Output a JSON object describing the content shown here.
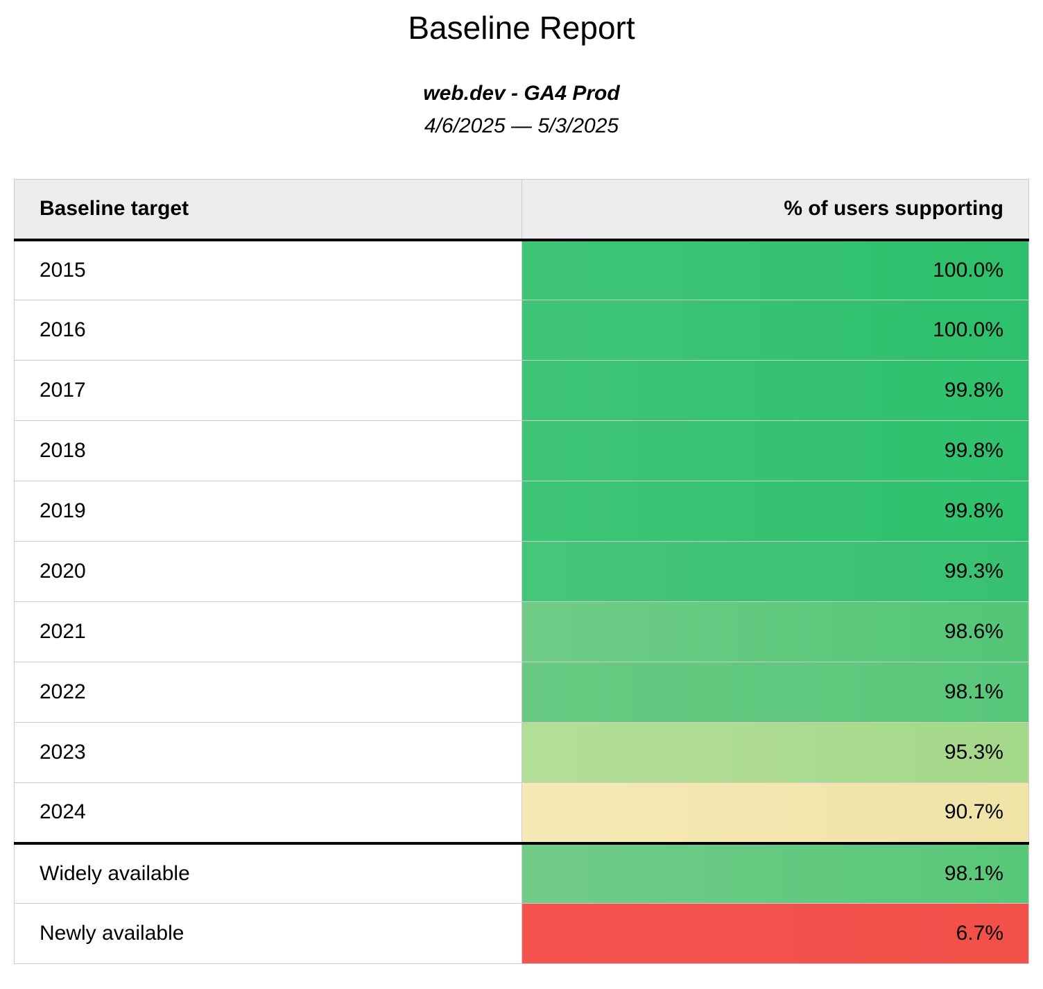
{
  "header": {
    "title": "Baseline Report",
    "subtitle": "web.dev - GA4 Prod",
    "date_range": "4/6/2025 — 5/3/2025"
  },
  "colors": {
    "header_background": "#ececec",
    "cell_border": "#cccccc",
    "divider_border": "#000000",
    "text": "#000000"
  },
  "table": {
    "columns": [
      "Baseline target",
      "% of users supporting"
    ],
    "rows": [
      {
        "label": "2015",
        "value": "100.0%",
        "color_left": "#3fc577",
        "color_right": "#2dc06b",
        "divider_above": false
      },
      {
        "label": "2016",
        "value": "100.0%",
        "color_left": "#3fc577",
        "color_right": "#2dc06b",
        "divider_above": false
      },
      {
        "label": "2017",
        "value": "99.8%",
        "color_left": "#3ec476",
        "color_right": "#2ec16c",
        "divider_above": false
      },
      {
        "label": "2018",
        "value": "99.8%",
        "color_left": "#3ec476",
        "color_right": "#2ec16c",
        "divider_above": false
      },
      {
        "label": "2019",
        "value": "99.8%",
        "color_left": "#3ec476",
        "color_right": "#2ec16c",
        "divider_above": false
      },
      {
        "label": "2020",
        "value": "99.3%",
        "color_left": "#46c67a",
        "color_right": "#36c170",
        "divider_above": false
      },
      {
        "label": "2021",
        "value": "98.6%",
        "color_left": "#70cc87",
        "color_right": "#52c676",
        "divider_above": false
      },
      {
        "label": "2022",
        "value": "98.1%",
        "color_left": "#68ca82",
        "color_right": "#58c77a",
        "divider_above": false
      },
      {
        "label": "2023",
        "value": "95.3%",
        "color_left": "#b3de98",
        "color_right": "#a4d889",
        "divider_above": false
      },
      {
        "label": "2024",
        "value": "90.7%",
        "color_left": "#f5e9b6",
        "color_right": "#f0e3a6",
        "divider_above": false
      },
      {
        "label": "Widely available",
        "value": "98.1%",
        "color_left": "#72cc88",
        "color_right": "#58c778",
        "divider_above": true
      },
      {
        "label": "Newly available",
        "value": "6.7%",
        "color_left": "#f5534e",
        "color_right": "#f4504a",
        "divider_above": false
      }
    ]
  }
}
